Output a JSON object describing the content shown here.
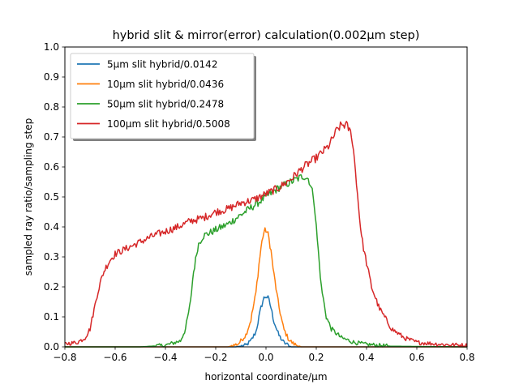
{
  "chart_data": {
    "type": "line",
    "title": "hybrid slit & mirror(error) calculation(0.002μm step)",
    "xlabel": "horizontal coordinate/μm",
    "ylabel": "sampled ray ratio/sampling step",
    "xlim": [
      -0.8,
      0.8
    ],
    "ylim": [
      0.0,
      1.0
    ],
    "xticks": [
      "−0.8",
      "−0.6",
      "−0.4",
      "−0.2",
      "0.0",
      "0.2",
      "0.4",
      "0.6",
      "0.8"
    ],
    "yticks": [
      "0.0",
      "0.1",
      "0.2",
      "0.3",
      "0.4",
      "0.5",
      "0.6",
      "0.7",
      "0.8",
      "0.9",
      "1.0"
    ],
    "grid": false,
    "legend_position": "top-left",
    "series": [
      {
        "name": "5μm slit hybrid/0.0142",
        "color": "#1f77b4",
        "x": [
          -0.8,
          -0.12,
          -0.08,
          -0.06,
          -0.04,
          -0.03,
          -0.02,
          -0.01,
          0.0,
          0.01,
          0.02,
          0.03,
          0.05,
          0.07,
          0.1,
          0.8
        ],
        "y": [
          0.0,
          0.0,
          0.005,
          0.02,
          0.05,
          0.09,
          0.13,
          0.16,
          0.17,
          0.16,
          0.13,
          0.09,
          0.04,
          0.015,
          0.0,
          0.0
        ]
      },
      {
        "name": "10μm slit hybrid/0.0436",
        "color": "#ff7f0e",
        "x": [
          -0.8,
          -0.15,
          -0.11,
          -0.08,
          -0.06,
          -0.04,
          -0.03,
          -0.02,
          -0.01,
          0.0,
          0.01,
          0.02,
          0.03,
          0.05,
          0.07,
          0.09,
          0.11,
          0.14,
          0.8
        ],
        "y": [
          0.0,
          0.0,
          0.01,
          0.04,
          0.09,
          0.18,
          0.26,
          0.33,
          0.38,
          0.39,
          0.37,
          0.32,
          0.25,
          0.14,
          0.06,
          0.025,
          0.01,
          0.0,
          0.0
        ]
      },
      {
        "name": "50μm slit hybrid/0.2478",
        "color": "#2ca02c",
        "x": [
          -0.8,
          -0.5,
          -0.4,
          -0.34,
          -0.32,
          -0.3,
          -0.29,
          -0.27,
          -0.25,
          -0.2,
          -0.15,
          -0.1,
          -0.05,
          0.0,
          0.05,
          0.1,
          0.15,
          0.17,
          0.19,
          0.2,
          0.21,
          0.22,
          0.23,
          0.24,
          0.26,
          0.3,
          0.35,
          0.4,
          0.45,
          0.5,
          0.8
        ],
        "y": [
          0.0,
          0.0,
          0.005,
          0.02,
          0.06,
          0.15,
          0.24,
          0.34,
          0.37,
          0.39,
          0.41,
          0.44,
          0.47,
          0.5,
          0.53,
          0.55,
          0.57,
          0.56,
          0.5,
          0.4,
          0.3,
          0.2,
          0.15,
          0.1,
          0.06,
          0.03,
          0.015,
          0.008,
          0.005,
          0.002,
          0.0
        ]
      },
      {
        "name": "100μm slit hybrid/0.5008",
        "color": "#d62728",
        "x": [
          -0.8,
          -0.75,
          -0.72,
          -0.7,
          -0.69,
          -0.68,
          -0.67,
          -0.66,
          -0.65,
          -0.64,
          -0.62,
          -0.6,
          -0.55,
          -0.5,
          -0.45,
          -0.4,
          -0.35,
          -0.3,
          -0.25,
          -0.2,
          -0.15,
          -0.1,
          -0.05,
          0.0,
          0.05,
          0.1,
          0.15,
          0.2,
          0.25,
          0.28,
          0.3,
          0.32,
          0.34,
          0.35,
          0.36,
          0.37,
          0.38,
          0.39,
          0.4,
          0.42,
          0.45,
          0.5,
          0.55,
          0.6,
          0.7,
          0.8
        ],
        "y": [
          0.01,
          0.015,
          0.03,
          0.06,
          0.1,
          0.14,
          0.18,
          0.21,
          0.24,
          0.26,
          0.29,
          0.31,
          0.33,
          0.35,
          0.37,
          0.385,
          0.4,
          0.42,
          0.43,
          0.45,
          0.46,
          0.48,
          0.49,
          0.51,
          0.53,
          0.56,
          0.6,
          0.63,
          0.67,
          0.72,
          0.74,
          0.74,
          0.71,
          0.64,
          0.55,
          0.45,
          0.37,
          0.32,
          0.28,
          0.2,
          0.13,
          0.06,
          0.03,
          0.015,
          0.008,
          0.005
        ]
      }
    ]
  }
}
